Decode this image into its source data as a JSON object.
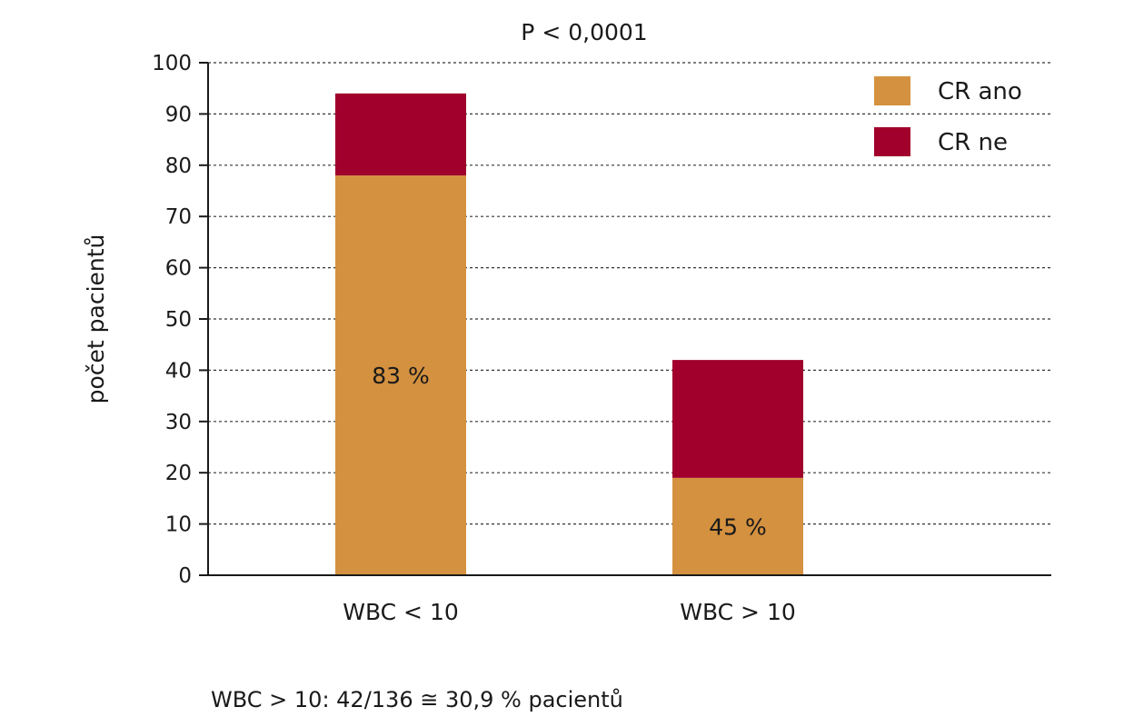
{
  "chart_data": {
    "type": "bar",
    "stacked": true,
    "title": "P < 0,0001",
    "xlabel": "",
    "ylabel": "počet pacientů",
    "ylim": [
      0,
      100
    ],
    "yticks": [
      0,
      10,
      20,
      30,
      40,
      50,
      60,
      70,
      80,
      90,
      100
    ],
    "grid": true,
    "legend_position": "top-right",
    "categories": [
      "WBC < 10",
      "WBC > 10"
    ],
    "series": [
      {
        "name": "CR ano",
        "color": "#d4913f",
        "values": [
          78,
          19
        ],
        "labels": [
          "83 %",
          "45 %"
        ]
      },
      {
        "name": "CR ne",
        "color": "#a0002b",
        "values": [
          16,
          23
        ]
      }
    ],
    "totals": [
      94,
      42
    ]
  },
  "footnote": "WBC > 10: 42/136 ≅ 30,9 %  pacientů"
}
